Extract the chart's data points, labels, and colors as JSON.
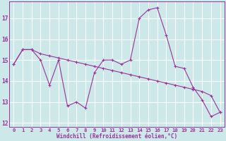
{
  "xlabel": "Windchill (Refroidissement éolien,°C)",
  "bg_color": "#cce8e8",
  "line_color": "#993399",
  "grid_color": "#ffffff",
  "xlim": [
    -0.5,
    23.5
  ],
  "ylim": [
    11.8,
    17.8
  ],
  "yticks": [
    12,
    13,
    14,
    15,
    16,
    17
  ],
  "xticks": [
    0,
    1,
    2,
    3,
    4,
    5,
    6,
    7,
    8,
    9,
    10,
    11,
    12,
    13,
    14,
    15,
    16,
    17,
    18,
    19,
    20,
    21,
    22,
    23
  ],
  "series1_x": [
    0,
    1,
    2,
    3,
    4,
    5,
    6,
    7,
    8,
    9,
    10,
    11,
    12,
    13,
    14,
    15,
    16,
    17,
    18,
    19,
    20,
    21,
    22,
    23
  ],
  "series1_y": [
    14.8,
    15.5,
    15.5,
    15.0,
    13.8,
    15.0,
    12.8,
    13.0,
    12.7,
    14.4,
    15.0,
    15.0,
    14.8,
    15.0,
    17.0,
    17.4,
    17.5,
    16.2,
    14.7,
    14.6,
    13.7,
    13.1,
    12.3,
    12.5
  ],
  "series2_x": [
    0,
    1,
    2,
    3,
    4,
    5,
    6,
    7,
    8,
    9,
    10,
    11,
    12,
    13,
    14,
    15,
    16,
    17,
    18,
    19,
    20,
    21,
    22,
    23
  ],
  "series2_y": [
    14.8,
    15.5,
    15.5,
    15.3,
    15.2,
    15.1,
    15.0,
    14.9,
    14.8,
    14.7,
    14.6,
    14.5,
    14.4,
    14.3,
    14.2,
    14.1,
    14.0,
    13.9,
    13.8,
    13.7,
    13.6,
    13.5,
    13.3,
    12.5
  ],
  "marker_size": 3,
  "lw": 0.8,
  "tick_fontsize": 5.2,
  "xlabel_fontsize": 5.5
}
